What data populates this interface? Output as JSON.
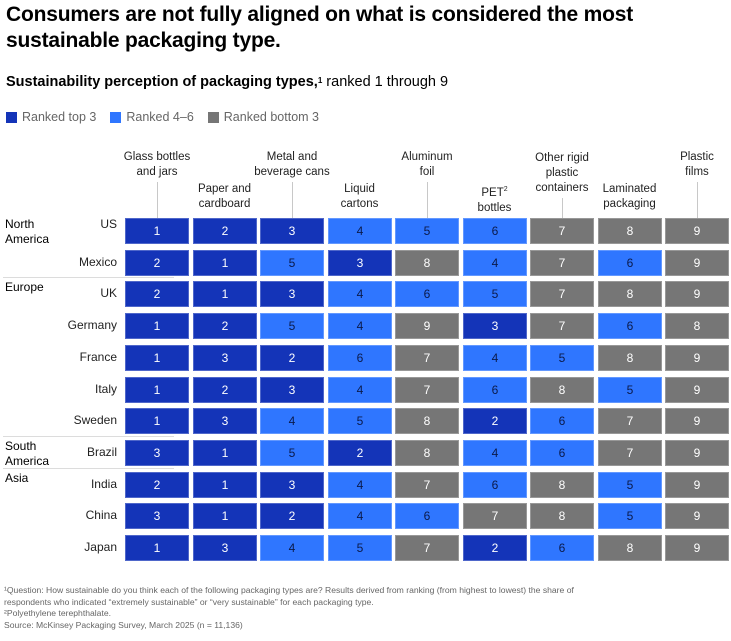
{
  "title": "Consumers are not fully aligned on what is considered the most sustainable packaging type.",
  "subtitle": {
    "bold": "Sustainability perception of packaging types,",
    "sup": "1",
    "rest": " ranked 1 through 9"
  },
  "legend": [
    {
      "label": "Ranked top 3",
      "color": "#1434b8"
    },
    {
      "label": "Ranked 4–6",
      "color": "#2f76ff"
    },
    {
      "label": "Ranked bottom 3",
      "color": "#767676"
    }
  ],
  "colors": {
    "top3": "#1434b8",
    "mid": "#2f76ff",
    "bottom3": "#767676",
    "top3_text": "#ffffff",
    "mid_text": "#0b1a4a",
    "bottom3_text": "#ffffff"
  },
  "chart_data": {
    "type": "heatmap",
    "title": "Sustainability perception of packaging types, ranked 1 through 9",
    "columns": [
      {
        "label": "Glass bottles and jars"
      },
      {
        "label": "Paper and cardboard"
      },
      {
        "label": "Metal and beverage cans"
      },
      {
        "label": "Liquid cartons"
      },
      {
        "label": "Aluminum foil"
      },
      {
        "label": "PET² bottles"
      },
      {
        "label": "Other rigid plastic containers"
      },
      {
        "label": "Laminated packaging"
      },
      {
        "label": "Plastic films"
      }
    ],
    "regions": [
      {
        "name": "North America",
        "countries": [
          "US",
          "Mexico"
        ]
      },
      {
        "name": "Europe",
        "countries": [
          "UK",
          "Germany",
          "France",
          "Italy",
          "Sweden"
        ]
      },
      {
        "name": "South America",
        "countries": [
          "Brazil"
        ]
      },
      {
        "name": "Asia",
        "countries": [
          "India",
          "China",
          "Japan"
        ]
      }
    ],
    "rows": [
      {
        "country": "US",
        "region": "North America",
        "ranks": [
          1,
          2,
          3,
          4,
          5,
          6,
          7,
          8,
          9
        ]
      },
      {
        "country": "Mexico",
        "region": "North America",
        "ranks": [
          2,
          1,
          5,
          3,
          8,
          4,
          7,
          6,
          9
        ]
      },
      {
        "country": "UK",
        "region": "Europe",
        "ranks": [
          2,
          1,
          3,
          4,
          6,
          5,
          7,
          8,
          9
        ]
      },
      {
        "country": "Germany",
        "region": "Europe",
        "ranks": [
          1,
          2,
          5,
          4,
          9,
          3,
          7,
          6,
          8
        ]
      },
      {
        "country": "France",
        "region": "Europe",
        "ranks": [
          1,
          3,
          2,
          6,
          7,
          4,
          5,
          8,
          9
        ]
      },
      {
        "country": "Italy",
        "region": "Europe",
        "ranks": [
          1,
          2,
          3,
          4,
          7,
          6,
          8,
          5,
          9
        ]
      },
      {
        "country": "Sweden",
        "region": "Europe",
        "ranks": [
          1,
          3,
          4,
          5,
          8,
          2,
          6,
          7,
          9
        ]
      },
      {
        "country": "Brazil",
        "region": "South America",
        "ranks": [
          3,
          1,
          5,
          2,
          8,
          4,
          6,
          7,
          9
        ]
      },
      {
        "country": "India",
        "region": "Asia",
        "ranks": [
          2,
          1,
          3,
          4,
          7,
          6,
          8,
          5,
          9
        ]
      },
      {
        "country": "China",
        "region": "Asia",
        "ranks": [
          3,
          1,
          2,
          4,
          6,
          7,
          8,
          5,
          9
        ]
      },
      {
        "country": "Japan",
        "region": "Asia",
        "ranks": [
          1,
          3,
          4,
          5,
          7,
          2,
          6,
          8,
          9
        ]
      }
    ],
    "color_scale": {
      "top3": [
        1,
        3
      ],
      "mid": [
        4,
        6
      ],
      "bottom3": [
        7,
        9
      ]
    }
  },
  "headers": [
    {
      "lines": [
        "Glass bottles",
        "and jars"
      ]
    },
    {
      "lines": [
        "Paper and",
        "cardboard"
      ]
    },
    {
      "lines": [
        "Metal and",
        "beverage cans"
      ]
    },
    {
      "lines": [
        "Liquid",
        "cartons"
      ]
    },
    {
      "lines": [
        "Aluminum",
        "foil"
      ]
    },
    {
      "lines": [
        "PET",
        "bottles"
      ],
      "sup": "2"
    },
    {
      "lines": [
        "Other rigid",
        "plastic",
        "containers"
      ]
    },
    {
      "lines": [
        "Laminated",
        "packaging"
      ]
    },
    {
      "lines": [
        "Plastic",
        "films"
      ]
    }
  ],
  "region_labels": [
    {
      "lines": [
        "North",
        "America"
      ]
    },
    {
      "lines": [
        "Europe"
      ]
    },
    {
      "lines": [
        "South",
        "America"
      ]
    },
    {
      "lines": [
        "Asia"
      ]
    }
  ],
  "footnotes": [
    "¹Question: How sustainable do you think each of the following packaging types are? Results derived from ranking (from highest to lowest) the share of",
    "  respondents who indicated “extremely sustainable” or “very sustainable” for each packaging type.",
    "²Polyethylene terephthalate.",
    " Source: McKinsey Packaging Survey, March 2025 (n = 11,136)"
  ]
}
